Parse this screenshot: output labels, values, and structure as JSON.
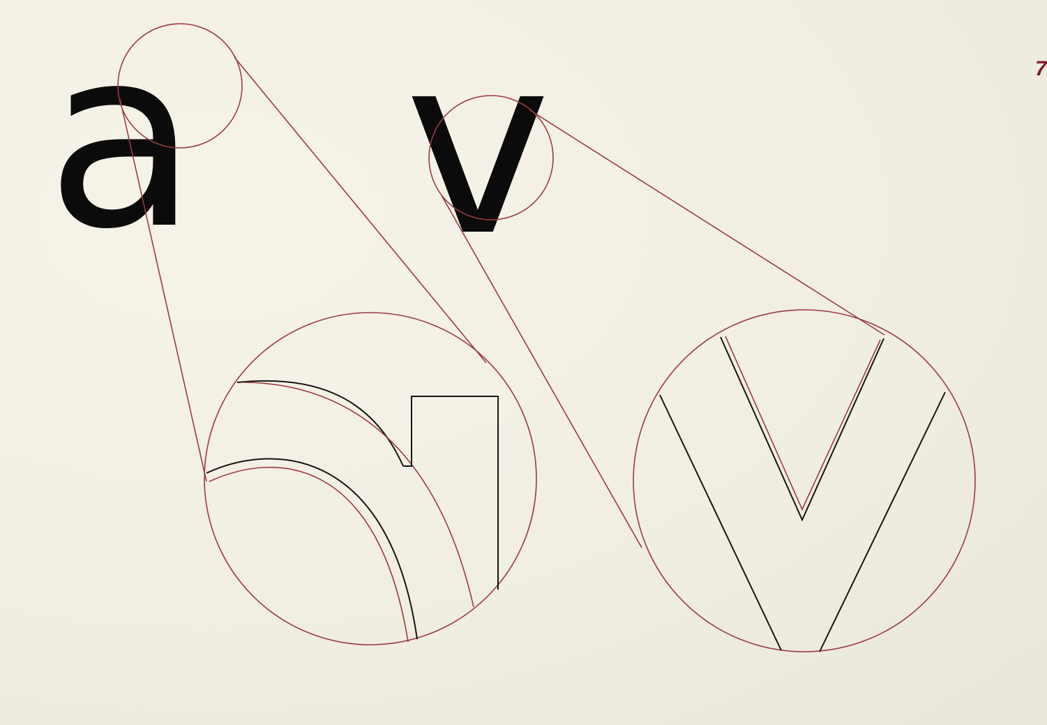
{
  "letters": {
    "first": "a",
    "second": "v"
  },
  "page_number": "7",
  "colors": {
    "paper": "#f3f0e4",
    "ink": "#0b0b0b",
    "guide_red": "#9b3a43",
    "page_number": "#7a1f2a"
  }
}
